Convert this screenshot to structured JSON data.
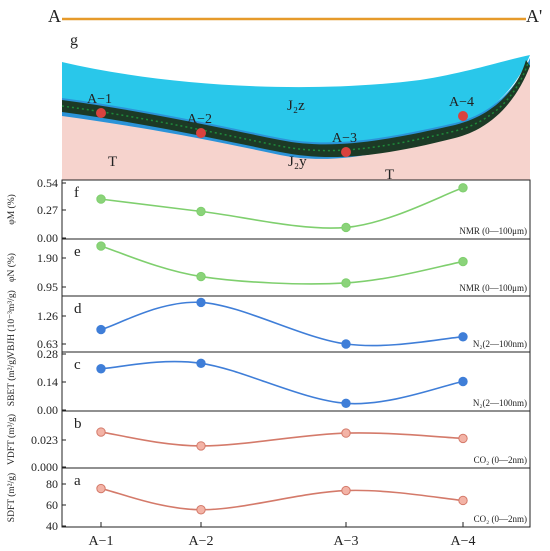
{
  "section": {
    "start_label": "A",
    "end_label": "A'",
    "panel_letter": "g",
    "layers": {
      "upper": "J₂z",
      "lower": "J₂y",
      "base_left": "T",
      "base_right": "T"
    },
    "wells": [
      "A−1",
      "A−2",
      "A−3",
      "A−4"
    ],
    "colors": {
      "axis_line": "#e69a2a",
      "upper_layer": "#29c7ea",
      "mid_layer": "#2b93d8",
      "coal_seam": "#1c3a26",
      "base": "#f6d3cd",
      "point": "#d9423e"
    }
  },
  "chart_data": [
    {
      "type": "line",
      "letter": "f",
      "x": [
        "A−1",
        "A−2",
        "A−3",
        "A−4"
      ],
      "values": [
        0.38,
        0.25,
        0.08,
        0.5
      ],
      "ylabel": "φM (%)",
      "yticks": [
        "0.54",
        "0.27",
        "0.00"
      ],
      "ylim": [
        0,
        0.54
      ],
      "annotation": "NMR (0—100μm)",
      "color": "#7fcf6e",
      "marker_fill": "#8bd37a"
    },
    {
      "type": "line",
      "letter": "e",
      "x": [
        "A−1",
        "A−2",
        "A−3",
        "A−4"
      ],
      "values": [
        2.38,
        1.2,
        0.95,
        1.78
      ],
      "ylabel": "φN (%)",
      "yticks": [
        "1.90",
        "0.95"
      ],
      "ylim": [
        0.6,
        2.5
      ],
      "annotation": "NMR (0—100μm)",
      "color": "#7fcf6e",
      "marker_fill": "#8bd37a"
    },
    {
      "type": "line",
      "letter": "d",
      "x": [
        "A−1",
        "A−2",
        "A−3",
        "A−4"
      ],
      "values": [
        0.98,
        1.66,
        0.62,
        0.8
      ],
      "ylabel": "VBJH (10⁻³m³/g)",
      "yticks": [
        "1.26",
        "0.63"
      ],
      "ylim": [
        0.52,
        1.72
      ],
      "annotation": "N₂(2—100nm)",
      "color": "#3f7ed8",
      "marker_fill": "#3f7ed8"
    },
    {
      "type": "line",
      "letter": "c",
      "x": [
        "A−1",
        "A−2",
        "A−3",
        "A−4"
      ],
      "values": [
        0.21,
        0.24,
        0.02,
        0.14
      ],
      "ylabel": "SBET (m²/g)",
      "yticks": [
        "0.28",
        "0.14",
        "0.00"
      ],
      "ylim": [
        0,
        0.28
      ],
      "annotation": "N₂(2—100nm)",
      "color": "#3f7ed8",
      "marker_fill": "#3f7ed8"
    },
    {
      "type": "line",
      "letter": "b",
      "x": [
        "A−1",
        "A−2",
        "A−3",
        "A−4"
      ],
      "values": [
        0.03,
        0.017,
        0.029,
        0.024
      ],
      "ylabel": "VDFT (m³/g)",
      "yticks": [
        "0.023",
        "0.000"
      ],
      "ylim": [
        0,
        0.046
      ],
      "annotation": "CO₂ (0—2nm)",
      "color": "#d47a6a",
      "marker_fill": "#f3b3a6"
    },
    {
      "type": "line",
      "letter": "a",
      "x": [
        "A−1",
        "A−2",
        "A−3",
        "A−4"
      ],
      "values": [
        75,
        43,
        72,
        57
      ],
      "ylabel": "SDFT (m²/g)",
      "yticks": [
        "80",
        "60",
        "40"
      ],
      "ylim": [
        23,
        100
      ],
      "annotation": "CO₂ (0—2nm)",
      "color": "#d47a6a",
      "marker_fill": "#f3b3a6"
    }
  ]
}
